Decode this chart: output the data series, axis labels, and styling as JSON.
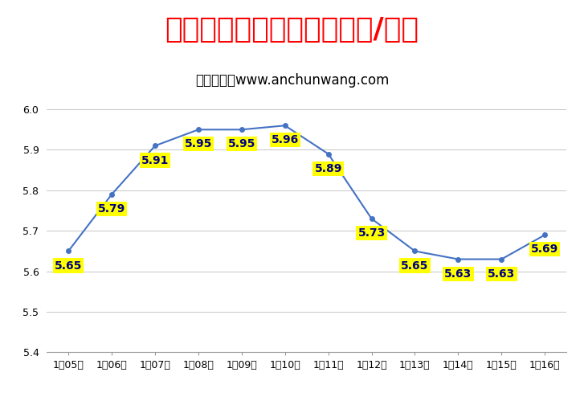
{
  "title": "全国鹌鹑蛋均价走势图（元/斤）",
  "subtitle": "中国鹌鹑网www.anchunwang.com",
  "categories": [
    "1月05日",
    "1月06日",
    "1月07日",
    "1月08日",
    "1月09日",
    "1月10日",
    "1月11日",
    "1月12日",
    "1月13日",
    "1月14日",
    "1月15日",
    "1月16日"
  ],
  "values": [
    5.65,
    5.79,
    5.91,
    5.95,
    5.95,
    5.96,
    5.89,
    5.73,
    5.65,
    5.63,
    5.63,
    5.69
  ],
  "ylim": [
    5.4,
    6.05
  ],
  "yticks": [
    5.4,
    5.5,
    5.6,
    5.7,
    5.8,
    5.9,
    6.0
  ],
  "line_color": "#4472C4",
  "title_color": "#FF0000",
  "subtitle_color": "#000000",
  "label_bg_color": "#FFFF00",
  "label_text_color": "#000080",
  "background_color": "#FFFFFF",
  "grid_color": "#BBBBBB",
  "title_fontsize": 26,
  "subtitle_fontsize": 12,
  "label_fontsize": 10,
  "tick_fontsize": 9
}
